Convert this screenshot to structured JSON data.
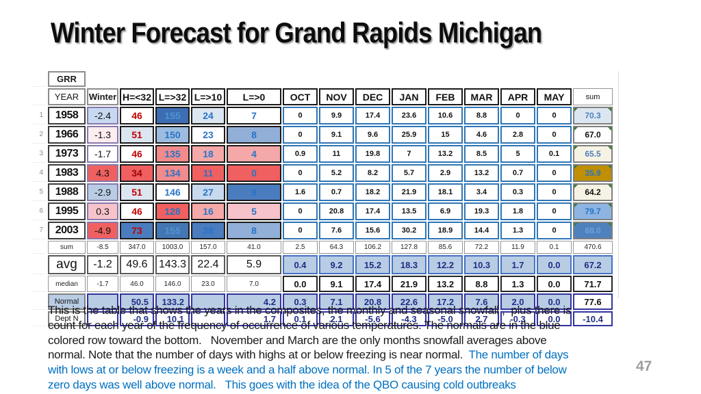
{
  "slide": {
    "title": "Winter Forecast for Grand Rapids Michigan",
    "page_number": "47"
  },
  "colors": {
    "caption_blue": "#0070c0",
    "navy_number": "#1f2d86",
    "red_number": "#c00000",
    "blue_number": "#2874c7",
    "normal_row_blue": "#b8cce4",
    "cold_dark_blue": "#3d6eb4",
    "warm_red": "#f06060",
    "low_snow_gold": "#bf8f00",
    "month_cell_border_blue": "#2e75b6"
  },
  "table": {
    "corner_label": "GRR",
    "column_headers": [
      "YEAR",
      "Winter",
      "H=<32",
      "L=>32",
      "L=>10",
      "L=>0",
      "OCT",
      "NOV",
      "DEC",
      "JAN",
      "FEB",
      "MAR",
      "APR",
      "MAY",
      "sum"
    ],
    "rows": [
      {
        "type": "r-grr",
        "num": "",
        "cells": [
          [
            "GRR",
            "hg b"
          ],
          [
            "",
            "none"
          ],
          [
            "",
            "none"
          ],
          [
            "",
            "none"
          ],
          [
            "",
            "none"
          ],
          [
            "",
            "none"
          ],
          [
            "",
            "none"
          ],
          [
            "",
            "none"
          ],
          [
            "",
            "none"
          ],
          [
            "",
            "none"
          ],
          [
            "",
            "none"
          ],
          [
            "",
            "none"
          ],
          [
            "",
            "none"
          ],
          [
            "",
            "none"
          ],
          [
            "",
            "none"
          ]
        ]
      },
      {
        "type": "r-hdr",
        "num": "",
        "cells": [
          [
            "YEAR",
            "hg"
          ],
          [
            "Winter",
            "hg b"
          ],
          [
            "H=<32",
            "hb"
          ],
          [
            "L=>32",
            "hb"
          ],
          [
            "L=>10",
            "hb"
          ],
          [
            "L=>0",
            "hb"
          ],
          [
            "OCT",
            "hb"
          ],
          [
            "NOV",
            "hb"
          ],
          [
            "DEC",
            "hb"
          ],
          [
            "JAN",
            "hb"
          ],
          [
            "FEB",
            "hb"
          ],
          [
            "MAR",
            "hb"
          ],
          [
            "APR",
            "hb"
          ],
          [
            "MAY",
            "hb"
          ],
          [
            "sum",
            "hs"
          ]
        ]
      },
      {
        "type": "r-year",
        "num": "1",
        "cells": [
          [
            "1958",
            "cy"
          ],
          [
            "-2.4",
            "cw bg-vlb"
          ],
          [
            "46",
            "ch tr"
          ],
          [
            "155",
            "ch tlb bg-db"
          ],
          [
            "24",
            "ch tb bg-xlb"
          ],
          [
            "7",
            "ch tb"
          ],
          [
            "0",
            "cm"
          ],
          [
            "9.9",
            "cm"
          ],
          [
            "17.4",
            "cm"
          ],
          [
            "23.6",
            "cm"
          ],
          [
            "10.6",
            "cm"
          ],
          [
            "8.8",
            "cm"
          ],
          [
            "0",
            "cm"
          ],
          [
            "0",
            "cm"
          ],
          [
            "70.3",
            "cs tsb bg-xlb g"
          ]
        ]
      },
      {
        "type": "r-year",
        "num": "2",
        "cells": [
          [
            "1966",
            "cy"
          ],
          [
            "-1.3",
            "cw bg-vlp"
          ],
          [
            "51",
            "ch tr bg-xlb"
          ],
          [
            "150",
            "ch tb bg-lmb2"
          ],
          [
            "23",
            "ch tb"
          ],
          [
            "8",
            "ch tb bg-lmb"
          ],
          [
            "0",
            "cm"
          ],
          [
            "9.1",
            "cm"
          ],
          [
            "9.6",
            "cm"
          ],
          [
            "25.9",
            "cm"
          ],
          [
            "15",
            "cm"
          ],
          [
            "4.6",
            "cm"
          ],
          [
            "2.8",
            "cm"
          ],
          [
            "0",
            "cm"
          ],
          [
            "67.0",
            "cs g"
          ]
        ]
      },
      {
        "type": "r-year",
        "num": "3",
        "cells": [
          [
            "1973",
            "cy"
          ],
          [
            "-1.7",
            "cw"
          ],
          [
            "46",
            "ch tr"
          ],
          [
            "135",
            "ch tb bg-sal"
          ],
          [
            "18",
            "ch tb bg-lsal"
          ],
          [
            "4",
            "ch tb bg-lsal"
          ],
          [
            "0.9",
            "cm"
          ],
          [
            "11",
            "cm"
          ],
          [
            "19.8",
            "cm"
          ],
          [
            "7",
            "cm"
          ],
          [
            "13.2",
            "cm"
          ],
          [
            "8.5",
            "cm"
          ],
          [
            "5",
            "cm"
          ],
          [
            "0.1",
            "cm"
          ],
          [
            "65.5",
            "cs tsb bg-cream g"
          ]
        ]
      },
      {
        "type": "r-year",
        "num": "4",
        "cells": [
          [
            "1983",
            "cy"
          ],
          [
            "4.3",
            "cw bg-red"
          ],
          [
            "34",
            "ch tdr bg-red"
          ],
          [
            "134",
            "ch tb bg-sal"
          ],
          [
            "11",
            "ch tb bg-red"
          ],
          [
            "0",
            "ch tb bg-red"
          ],
          [
            "0",
            "cm"
          ],
          [
            "5.2",
            "cm"
          ],
          [
            "8.2",
            "cm"
          ],
          [
            "5.7",
            "cm"
          ],
          [
            "2.9",
            "cm"
          ],
          [
            "13.2",
            "cm"
          ],
          [
            "0.7",
            "cm"
          ],
          [
            "0",
            "cm"
          ],
          [
            "35.9",
            "cs tb bg-gold g"
          ]
        ]
      },
      {
        "type": "r-year",
        "num": "5",
        "cells": [
          [
            "1988",
            "cy"
          ],
          [
            "-2.9",
            "cw bg-plb"
          ],
          [
            "51",
            "ch tr bg-xlb"
          ],
          [
            "146",
            "ch tb"
          ],
          [
            "27",
            "ch tb bg-lb27"
          ],
          [
            "9",
            "ch tb bg-mb"
          ],
          [
            "1.6",
            "cm"
          ],
          [
            "0.7",
            "cm"
          ],
          [
            "18.2",
            "cm"
          ],
          [
            "21.9",
            "cm"
          ],
          [
            "18.1",
            "cm"
          ],
          [
            "3.4",
            "cm"
          ],
          [
            "0.3",
            "cm"
          ],
          [
            "0",
            "cm"
          ],
          [
            "64.2",
            "cs bg-cream g"
          ]
        ]
      },
      {
        "type": "r-year",
        "num": "6",
        "cells": [
          [
            "1995",
            "cy"
          ],
          [
            "0.3",
            "cw bg-pink"
          ],
          [
            "46",
            "ch tr"
          ],
          [
            "128",
            "ch tb bg-red"
          ],
          [
            "16",
            "ch tb bg-lsal"
          ],
          [
            "5",
            "ch tb bg-pink"
          ],
          [
            "0",
            "cm"
          ],
          [
            "20.8",
            "cm"
          ],
          [
            "17.4",
            "cm"
          ],
          [
            "13.5",
            "cm"
          ],
          [
            "6.9",
            "cm"
          ],
          [
            "19.3",
            "cm"
          ],
          [
            "1.8",
            "cm"
          ],
          [
            "0",
            "cm"
          ],
          [
            "79.7",
            "cs tb bg-lb g"
          ]
        ]
      },
      {
        "type": "r-year",
        "num": "7",
        "cells": [
          [
            "2003",
            "cy"
          ],
          [
            "-4.9",
            "cw bg-red"
          ],
          [
            "73",
            "ch tr bg-mb"
          ],
          [
            "155",
            "ch tlb bg-db2"
          ],
          [
            "38",
            "ch tb bg-mb"
          ],
          [
            "8",
            "ch tb bg-lmb"
          ],
          [
            "0",
            "cm"
          ],
          [
            "7.6",
            "cm"
          ],
          [
            "15.6",
            "cm"
          ],
          [
            "30.2",
            "cm"
          ],
          [
            "18.9",
            "cm"
          ],
          [
            "14.4",
            "cm"
          ],
          [
            "1.3",
            "cm"
          ],
          [
            "0",
            "cm"
          ],
          [
            "88.0",
            "cs tfa bg-mb2 g"
          ]
        ]
      },
      {
        "type": "r-sumrow",
        "num": "",
        "cells": [
          [
            "sum",
            "lsm"
          ],
          [
            "-8.5",
            "lsm"
          ],
          [
            "347.0",
            "lsm"
          ],
          [
            "1003.0",
            "lsm"
          ],
          [
            "157.0",
            "lsm"
          ],
          [
            "41.0",
            "lsm"
          ],
          [
            "2.5",
            "lsm"
          ],
          [
            "64.3",
            "lsm"
          ],
          [
            "106.2",
            "lsm"
          ],
          [
            "127.8",
            "lsm"
          ],
          [
            "85.6",
            "lsm"
          ],
          [
            "72.2",
            "lsm"
          ],
          [
            "11.9",
            "lsm"
          ],
          [
            "0.1",
            "lsm"
          ],
          [
            "470.6",
            "lsm"
          ]
        ]
      },
      {
        "type": "r-avg",
        "num": "",
        "cells": [
          [
            "avg",
            "lavg"
          ],
          [
            "-1.2",
            "cavg"
          ],
          [
            "49.6",
            "cavg"
          ],
          [
            "143.3",
            "cavg"
          ],
          [
            "22.4",
            "cavg"
          ],
          [
            "5.9",
            "cavg"
          ],
          [
            "0.4",
            "cavgm"
          ],
          [
            "9.2",
            "cavgm"
          ],
          [
            "15.2",
            "cavgm"
          ],
          [
            "18.3",
            "cavgm"
          ],
          [
            "12.2",
            "cavgm"
          ],
          [
            "10.3",
            "cavgm"
          ],
          [
            "1.7",
            "cavgm"
          ],
          [
            "0.0",
            "cavgm"
          ],
          [
            "67.2",
            "cavgm"
          ]
        ]
      },
      {
        "type": "r-med",
        "num": "",
        "cells": [
          [
            "median",
            "lsm"
          ],
          [
            "-1.7",
            "lsm"
          ],
          [
            "46.0",
            "lsm"
          ],
          [
            "146.0",
            "lsm"
          ],
          [
            "23.0",
            "lsm"
          ],
          [
            "7.0",
            "lsm"
          ],
          [
            "0.0",
            "cmed"
          ],
          [
            "9.1",
            "cmed"
          ],
          [
            "17.4",
            "cmed"
          ],
          [
            "21.9",
            "cmed"
          ],
          [
            "13.2",
            "cmed"
          ],
          [
            "8.8",
            "cmed"
          ],
          [
            "1.3",
            "cmed"
          ],
          [
            "0.0",
            "cmed"
          ],
          [
            "71.7",
            "cmed"
          ]
        ]
      },
      {
        "type": "r-nor",
        "num": "",
        "cells": [
          [
            "Normal",
            "lnor"
          ],
          [
            "",
            "cnor"
          ],
          [
            "50.5",
            "cnor ar"
          ],
          [
            "133.2",
            "cnor ar"
          ],
          [
            "",
            "cnor"
          ],
          [
            "4.2",
            "cnor ar"
          ],
          [
            "0.3",
            "cnor"
          ],
          [
            "7.1",
            "cnor"
          ],
          [
            "20.8",
            "cnor"
          ],
          [
            "22.6",
            "cnor"
          ],
          [
            "17.2",
            "cnor"
          ],
          [
            "7.6",
            "cnor"
          ],
          [
            "2.0",
            "cnor"
          ],
          [
            "0.0",
            "cnor"
          ],
          [
            "77.6",
            "cnor wb"
          ]
        ]
      },
      {
        "type": "r-dep",
        "num": "",
        "cells": [
          [
            "Dept N",
            "ldep"
          ],
          [
            "",
            "cdep"
          ],
          [
            "-0.9",
            "cdep ar"
          ],
          [
            "10.1",
            "cdep ar"
          ],
          [
            "",
            "cdep"
          ],
          [
            "1.7",
            "cdep ar"
          ],
          [
            "0.1",
            "cdep"
          ],
          [
            "2.1",
            "cdep"
          ],
          [
            "-5.6",
            "cdep"
          ],
          [
            "-4.3",
            "cdep"
          ],
          [
            "-5.0",
            "cdep"
          ],
          [
            "2.7",
            "cdep"
          ],
          [
            "-0.3",
            "cdep"
          ],
          [
            "0.0",
            "cdep"
          ],
          [
            "-10.4",
            "cdep"
          ]
        ]
      }
    ]
  },
  "paragraph": {
    "lines": [
      [
        [
          "This is the table that shows the years in the composites, the monthly and seasonal snowfall ,  plus there is",
          0
        ]
      ],
      [
        [
          "count for each year of the frequency of occurrence of various temperatures. The normals are in the blue",
          0
        ]
      ],
      [
        [
          "colored row toward the bottom.   November and March are the only months snowfall averages above",
          0
        ]
      ],
      [
        [
          "normal. Note that the number of days with highs at or below freezing is near normal.",
          0
        ],
        [
          "  The number of days",
          1
        ]
      ],
      [
        [
          "with lows at or below freezing is a week and a half above normal. In 5 of the 7 years the number of below",
          1
        ]
      ],
      [
        [
          "zero days was well above normal.   This goes with the idea of the QBO causing cold outbreaks",
          1
        ]
      ]
    ]
  }
}
